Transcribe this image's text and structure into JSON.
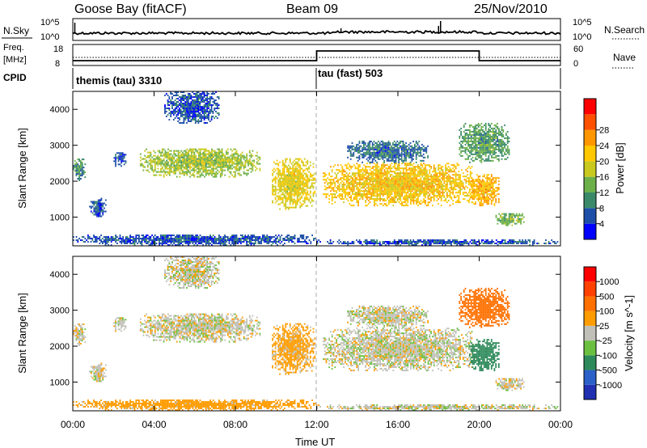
{
  "header": {
    "station": "Goose Bay (fitACF)",
    "beam": "Beam 09",
    "date": "25/Nov/2010"
  },
  "noise_panel": {
    "left_label": "N.Sky",
    "right_label": "N.Search",
    "left_ticks": [
      "10^5",
      "10^0"
    ],
    "right_ticks": [
      "10^5",
      "10^0"
    ]
  },
  "freq_panel": {
    "left_label_line1": "Freq.",
    "left_label_line2": "[MHz]",
    "left_ticks": [
      "18",
      "8"
    ],
    "right_label": "Nave",
    "right_ticks": [
      "60",
      "0"
    ]
  },
  "cpid_panel": {
    "label": "CPID",
    "modes": [
      {
        "name": "themis (tau) 3310",
        "start_hour": 0,
        "end_hour": 12
      },
      {
        "name": "tau (fast) 503",
        "start_hour": 12,
        "end_hour": 24
      }
    ]
  },
  "xaxis": {
    "ticks": [
      "00:00",
      "04:00",
      "08:00",
      "12:00",
      "16:00",
      "20:00",
      "00:00"
    ],
    "label": "Time UT"
  },
  "power_panel": {
    "ylabel": "Slant Range [km]",
    "yticks": [
      "1000",
      "2000",
      "3000",
      "4000"
    ],
    "colorbar_label": "Power [dB]",
    "colorbar_ticks": [
      "4",
      "8",
      "12",
      "16",
      "20",
      "24",
      "28"
    ],
    "colors": [
      "#0000ff",
      "#1e4fa8",
      "#3a8a6a",
      "#6cb04a",
      "#c8c81e",
      "#ffc800",
      "#ff9600",
      "#ff5000",
      "#ff0000"
    ]
  },
  "velocity_panel": {
    "ylabel": "Slant Range [km]",
    "yticks": [
      "1000",
      "2000",
      "3000",
      "4000"
    ],
    "colorbar_label": "Velocity [m s^-1]",
    "colorbar_ticks": [
      "1000",
      "500",
      "100",
      "25",
      "-25",
      "-100",
      "-500",
      "-1000"
    ],
    "colors": [
      "#2030b0",
      "#2a60c8",
      "#2e8a5a",
      "#6cc040",
      "#c0c0b8",
      "#ff9c00",
      "#ff7000",
      "#ff4000",
      "#ff0000"
    ]
  },
  "chart_data": {
    "type": "heatmap",
    "x_unit": "hours UT",
    "xlim": [
      0,
      24
    ],
    "y_unit": "km",
    "ylim": [
      200,
      4500
    ],
    "backscatter_regions": [
      {
        "t0": 0.0,
        "t1": 0.6,
        "r0": 2000,
        "r1": 2600,
        "power_db": 10,
        "velocity": 0
      },
      {
        "t0": 0.8,
        "t1": 1.6,
        "r0": 1000,
        "r1": 1500,
        "power_db": 6,
        "velocity": 0
      },
      {
        "t0": 2.0,
        "t1": 2.6,
        "r0": 2400,
        "r1": 2800,
        "power_db": 6,
        "velocity": 0
      },
      {
        "t0": 3.3,
        "t1": 9.2,
        "r0": 2100,
        "r1": 2900,
        "power_db": 16,
        "velocity": 0
      },
      {
        "t0": 4.5,
        "t1": 7.2,
        "r0": 3600,
        "r1": 4500,
        "power_db": 6,
        "velocity": 0
      },
      {
        "t0": 9.8,
        "t1": 11.9,
        "r0": 1200,
        "r1": 2600,
        "power_db": 20,
        "velocity": -50
      },
      {
        "t0": 12.3,
        "t1": 19.8,
        "r0": 1300,
        "r1": 2500,
        "power_db": 22,
        "velocity": 0
      },
      {
        "t0": 13.5,
        "t1": 17.5,
        "r0": 2500,
        "r1": 3100,
        "power_db": 8,
        "velocity": 0
      },
      {
        "t0": 19.5,
        "t1": 21.0,
        "r0": 1300,
        "r1": 2200,
        "power_db": 24,
        "velocity": 200
      },
      {
        "t0": 20.8,
        "t1": 22.2,
        "r0": 750,
        "r1": 1100,
        "power_db": 14,
        "velocity": 0
      },
      {
        "t0": 19.0,
        "t1": 21.5,
        "r0": 2500,
        "r1": 3600,
        "power_db": 12,
        "velocity": -150
      },
      {
        "t0": 0.0,
        "t1": 12.0,
        "r0": 200,
        "r1": 500,
        "power_db": 6,
        "velocity": -60
      },
      {
        "t0": 12.0,
        "t1": 24.0,
        "r0": 200,
        "r1": 350,
        "power_db": 6,
        "velocity": 0
      }
    ],
    "frequency_mhz": [
      {
        "t0": 0,
        "t1": 12,
        "value": 10.5
      },
      {
        "t0": 12,
        "t1": 20,
        "value": 10.5
      }
    ],
    "nave": [
      {
        "t0": 0,
        "t1": 12,
        "value": 15
      },
      {
        "t0": 12,
        "t1": 20,
        "value": 60
      },
      {
        "t0": 20,
        "t1": 24,
        "value": 15
      }
    ]
  }
}
